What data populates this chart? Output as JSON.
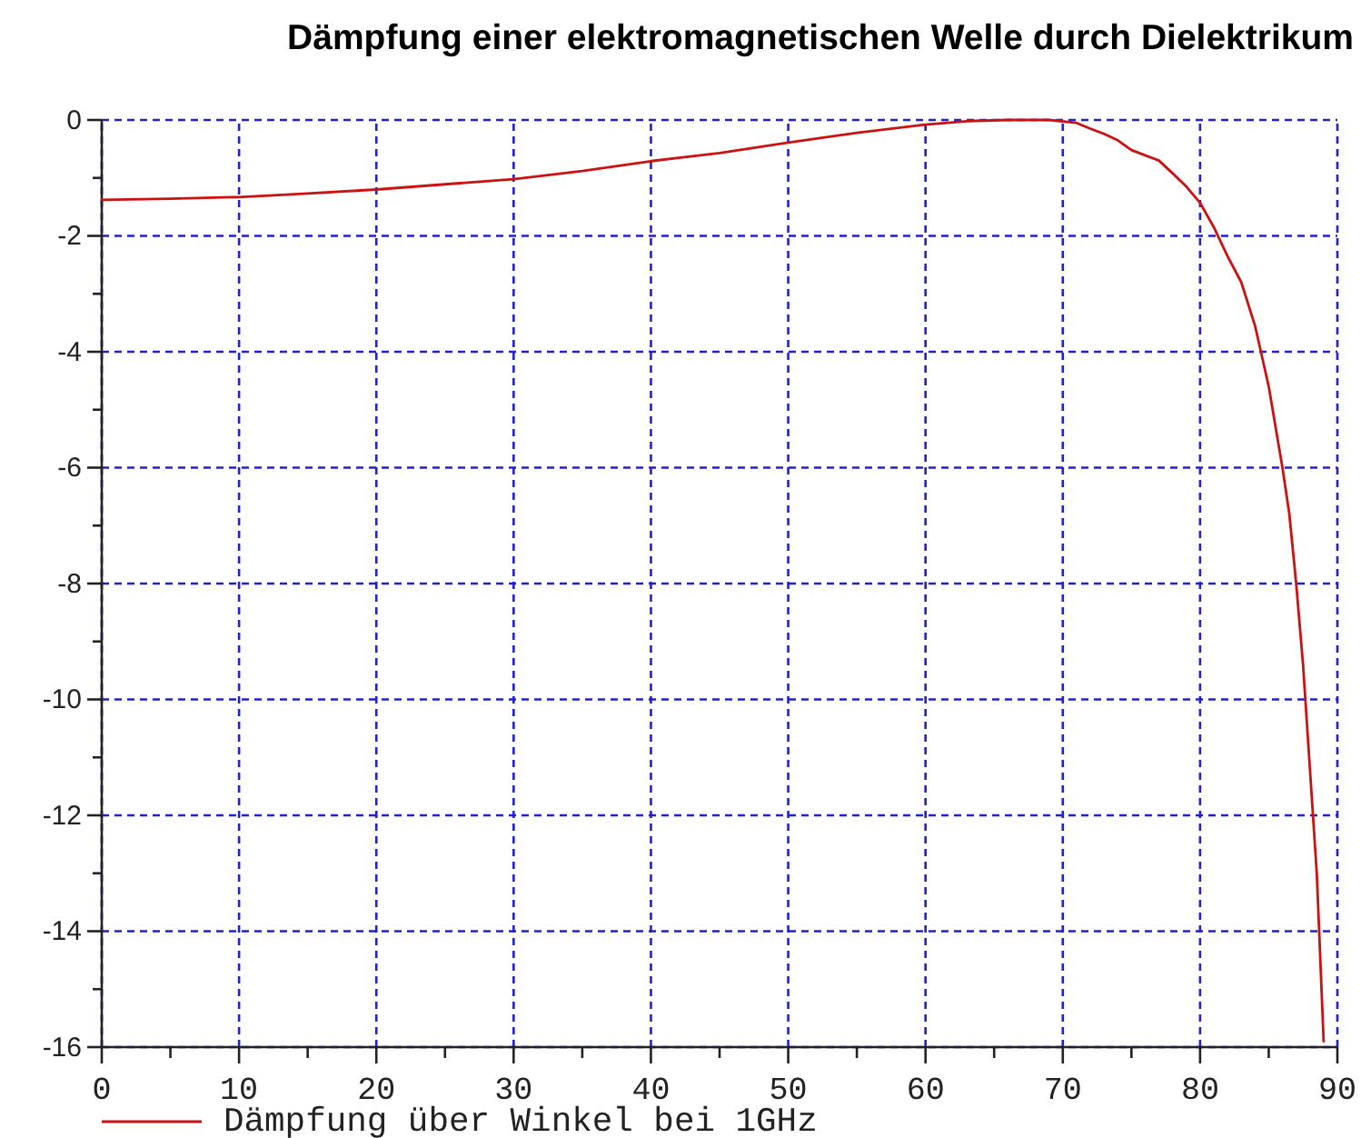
{
  "chart_data": {
    "type": "line",
    "title": "Dämpfung einer elektromagnetischen Welle durch Dielektrikum",
    "x": [
      0,
      5,
      10,
      15,
      20,
      25,
      30,
      35,
      40,
      45,
      50,
      55,
      60,
      63,
      66,
      69,
      71,
      72,
      73,
      74,
      75,
      77,
      78,
      79,
      80,
      81,
      82,
      83,
      84,
      85,
      86,
      86.5,
      87,
      87.5,
      88,
      88.5,
      89
    ],
    "series": [
      {
        "name": "Dämpfung über Winkel bei 1GHz",
        "color": "#cc1111",
        "values": [
          -1.38,
          -1.36,
          -1.33,
          -1.27,
          -1.2,
          -1.11,
          -1.02,
          -0.88,
          -0.71,
          -0.57,
          -0.39,
          -0.22,
          -0.08,
          -0.02,
          0,
          0,
          -0.05,
          -0.15,
          -0.24,
          -0.35,
          -0.52,
          -0.7,
          -0.92,
          -1.15,
          -1.43,
          -1.85,
          -2.35,
          -2.8,
          -3.55,
          -4.6,
          -6,
          -6.8,
          -8,
          -9.4,
          -11.2,
          -13,
          -15.9
        ]
      }
    ],
    "xlim": [
      0,
      90
    ],
    "ylim": [
      -16,
      0
    ],
    "xticks": [
      0,
      {
        "value": 5,
        "label": null
      },
      10,
      {
        "value": 15,
        "label": null
      },
      20,
      {
        "value": 25,
        "label": null
      },
      30,
      {
        "value": 35,
        "label": null
      },
      40,
      {
        "value": 45,
        "label": null
      },
      50,
      {
        "value": 55,
        "label": null
      },
      60,
      {
        "value": 65,
        "label": null
      },
      70,
      {
        "value": 75,
        "label": null
      },
      80,
      {
        "value": 85,
        "label": null
      },
      90
    ],
    "yticks": [
      0,
      {
        "value": -1,
        "label": null
      },
      -2,
      {
        "value": -3,
        "label": null
      },
      -4,
      {
        "value": -5,
        "label": null
      },
      -6,
      {
        "value": -7,
        "label": null
      },
      -8,
      {
        "value": -9,
        "label": null
      },
      -10,
      {
        "value": -11,
        "label": null
      },
      -12,
      {
        "value": -13,
        "label": null
      },
      -14,
      {
        "value": -15,
        "label": null
      },
      -16
    ],
    "grid": true,
    "legend": "bottom left"
  }
}
